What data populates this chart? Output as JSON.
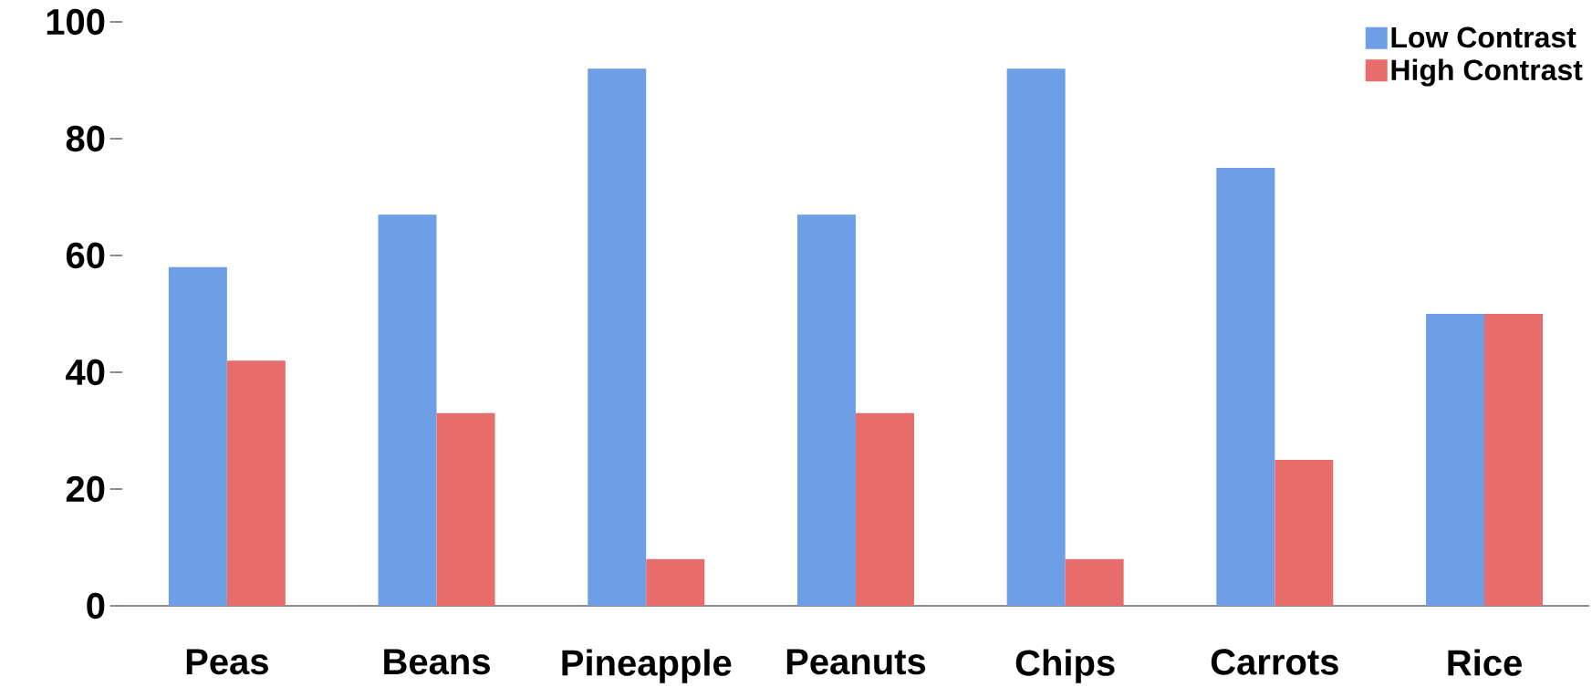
{
  "chart_data": {
    "type": "bar",
    "categories": [
      "Peas",
      "Beans",
      "Pineapple",
      "Peanuts",
      "Chips",
      "Carrots",
      "Rice"
    ],
    "series": [
      {
        "name": "Low Contrast",
        "color": "#6e9fe6",
        "values": [
          58,
          67,
          92,
          67,
          92,
          75,
          50
        ]
      },
      {
        "name": "High Contrast",
        "color": "#e76c6c",
        "values": [
          42,
          33,
          8,
          33,
          8,
          25,
          50
        ]
      }
    ],
    "ylim": [
      0,
      100
    ],
    "yticks": [
      0,
      20,
      40,
      60,
      80,
      100
    ],
    "grid": false,
    "legend": "top right"
  }
}
